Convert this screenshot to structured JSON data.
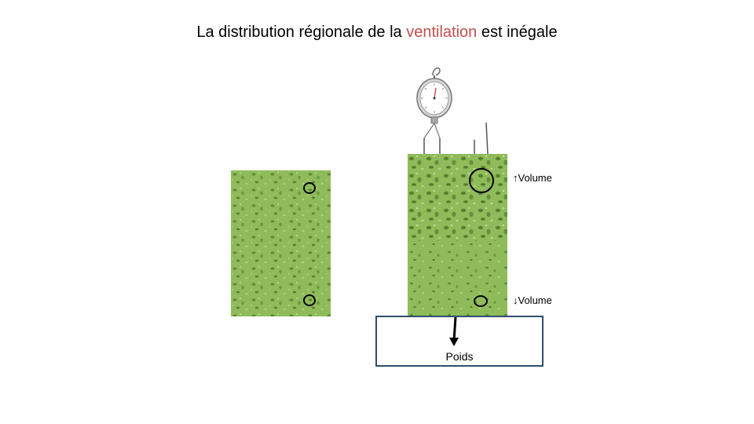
{
  "title": {
    "part1": "La distribution régionale de la",
    "highlight": "ventilation",
    "part2": "est inégale"
  },
  "labels": {
    "volume_up": "Volume",
    "volume_down": "Volume",
    "weight": "Poids"
  },
  "colors": {
    "sponge": "#8fbb5a",
    "highlight": "#c0504d",
    "box_border": "#2f4f6f"
  },
  "icons": {
    "arrow_up": "up-arrow-icon",
    "arrow_down": "down-arrow-icon",
    "scale": "hanging-scale-icon"
  }
}
